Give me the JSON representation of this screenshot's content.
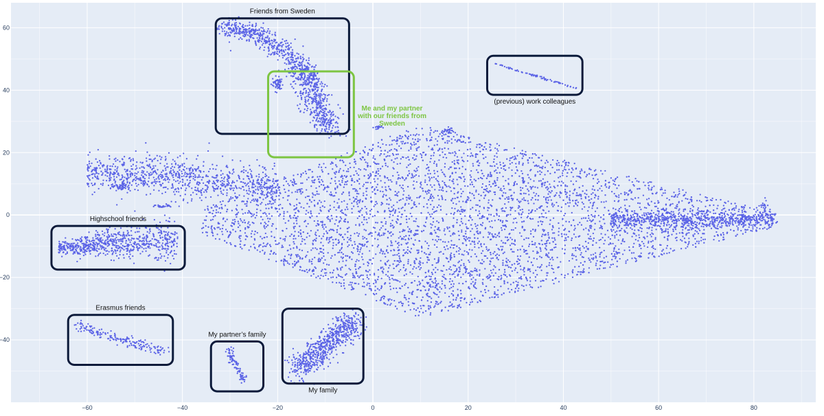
{
  "chart_data": {
    "type": "scatter",
    "xlim": [
      -76,
      93
    ],
    "ylim": [
      -60,
      68
    ],
    "x_ticks": [
      -60,
      -40,
      -20,
      0,
      20,
      40,
      60,
      80
    ],
    "y_ticks": [
      -40,
      -20,
      0,
      20,
      40,
      60
    ],
    "x_tick_labels": [
      "−60",
      "−40",
      "−20",
      "0",
      "20",
      "40",
      "60",
      "80"
    ],
    "y_tick_labels": [
      "−40",
      "−20",
      "0",
      "20",
      "40",
      "60"
    ],
    "grid": true,
    "point_color": "#5b63e6",
    "background_color": "#e5ecf6",
    "box_color": "#0b1a3a",
    "highlight_color": "#7dc542",
    "groups": [
      {
        "label": "Friends from Sweden",
        "x_range": [
          -33,
          -5
        ],
        "y_range": [
          26,
          63
        ],
        "style": "dark",
        "label_pos": "top"
      },
      {
        "label": "Me and my partner with our friends from Sweden",
        "label_lines": [
          "Me and my partner",
          "with our friends from",
          "Sweden"
        ],
        "x_range": [
          -22,
          -4
        ],
        "y_range": [
          18.5,
          46
        ],
        "style": "green",
        "label_pos": "right"
      },
      {
        "label": "(previous) work colleagues",
        "x_range": [
          24,
          44
        ],
        "y_range": [
          38.5,
          51
        ],
        "style": "dark",
        "label_pos": "bottom"
      },
      {
        "label": "Highschool friends",
        "x_range": [
          -67.5,
          -39.5
        ],
        "y_range": [
          -17.5,
          -3.5
        ],
        "style": "dark",
        "label_pos": "top"
      },
      {
        "label": "Erasmus friends",
        "x_range": [
          -64,
          -42
        ],
        "y_range": [
          -48,
          -32
        ],
        "style": "dark",
        "label_pos": "top"
      },
      {
        "label": "My partner’s family",
        "x_range": [
          -34,
          -23
        ],
        "y_range": [
          -56.5,
          -40.5
        ],
        "style": "dark",
        "label_pos": "top"
      },
      {
        "label": "My family",
        "x_range": [
          -19,
          -2
        ],
        "y_range": [
          -54,
          -30
        ],
        "style": "dark",
        "label_pos": "bottom"
      }
    ]
  }
}
